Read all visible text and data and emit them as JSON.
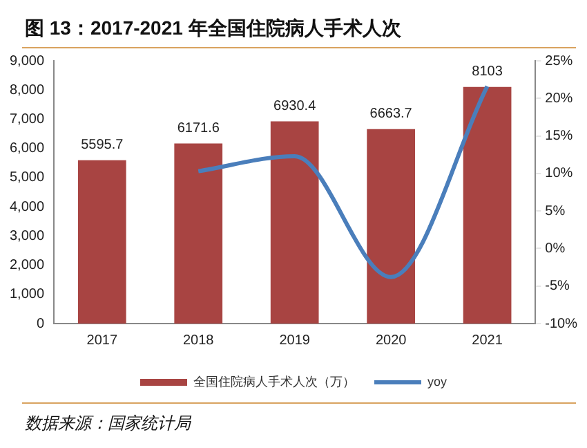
{
  "chart_data": {
    "type": "bar",
    "title": "图 13：2017-2021 年全国住院病人手术人次",
    "categories": [
      "2017",
      "2018",
      "2019",
      "2020",
      "2021"
    ],
    "series": [
      {
        "name": "全国住院病人手术人次（万）",
        "color": "#a84442",
        "values": [
          5595.7,
          6171.6,
          6930.4,
          6663.7,
          8103
        ],
        "value_labels": [
          "5595.7",
          "6171.6",
          "6930.4",
          "6663.7",
          "8103"
        ]
      },
      {
        "name": "yoy",
        "type": "line",
        "axis": "y2",
        "color": "#4a7ebb",
        "values": [
          null,
          10.3,
          12.3,
          -3.8,
          21.6
        ]
      }
    ],
    "ylim": [
      0,
      9000
    ],
    "yticks": [
      {
        "value": 0,
        "label": "0"
      },
      {
        "value": 1000,
        "label": "1,000"
      },
      {
        "value": 2000,
        "label": "2,000"
      },
      {
        "value": 3000,
        "label": "3,000"
      },
      {
        "value": 4000,
        "label": "4,000"
      },
      {
        "value": 5000,
        "label": "5,000"
      },
      {
        "value": 6000,
        "label": "6,000"
      },
      {
        "value": 7000,
        "label": "7,000"
      },
      {
        "value": 8000,
        "label": "8,000"
      },
      {
        "value": 9000,
        "label": "9,000"
      }
    ],
    "y2lim": [
      -10,
      25
    ],
    "y2ticks": [
      {
        "value": -10,
        "label": "-10%"
      },
      {
        "value": -5,
        "label": "-5%"
      },
      {
        "value": 0,
        "label": "0%"
      },
      {
        "value": 5,
        "label": "5%"
      },
      {
        "value": 10,
        "label": "10%"
      },
      {
        "value": 15,
        "label": "15%"
      },
      {
        "value": 20,
        "label": "20%"
      },
      {
        "value": 25,
        "label": "25%"
      }
    ],
    "grid": false,
    "legend": "bottom",
    "marker": "none",
    "line_style": "solid",
    "annotations": [
      "数据来源：国家统计局"
    ]
  }
}
